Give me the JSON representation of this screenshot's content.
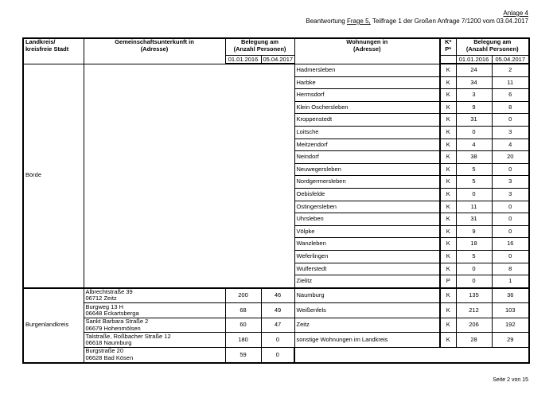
{
  "header": {
    "annex": "Anlage 4",
    "line_prefix": "Beantwortung ",
    "line_link": "Frage 5,",
    "line_suffix": " Teilfrage 1 der Großen Anfrage 7/1200 vom 03.04.2017"
  },
  "table": {
    "headers": {
      "landkreis": "Landkreis/",
      "landkreis2": "kreisfreie Stadt",
      "gu": "Gemeinschaftsunterkunft in",
      "gu2": "(Adresse)",
      "bel": "Belegung am",
      "bel2": "(Anzahl Personen)",
      "d1": "01.01.2016",
      "d2": "05.04.2017",
      "wo": "Wohnungen in",
      "wo2": "(Adresse)",
      "kp": "K*",
      "kp2": "P*",
      "wbel": "Belegung am",
      "wbel2": "(Anzahl Personen)",
      "wd1": "01.01.2016",
      "wd2": "05.04.2017"
    },
    "boerde": {
      "name": "Börde",
      "rows": [
        [
          "Hadmersleben",
          "K",
          "24",
          "2"
        ],
        [
          "Harbke",
          "K",
          "34",
          "11"
        ],
        [
          "Hermsdorf",
          "K",
          "3",
          "6"
        ],
        [
          "Klein Oschersleben",
          "K",
          "9",
          "8"
        ],
        [
          "Kroppenstedt",
          "K",
          "31",
          "0"
        ],
        [
          "Loitsche",
          "K",
          "0",
          "3"
        ],
        [
          "Meitzendorf",
          "K",
          "4",
          "4"
        ],
        [
          "Neindorf",
          "K",
          "38",
          "20"
        ],
        [
          "Neuwegersleben",
          "K",
          "5",
          "0"
        ],
        [
          "Nordgermersleben",
          "K",
          "5",
          "3"
        ],
        [
          "Oebisfelde",
          "K",
          "0",
          "3"
        ],
        [
          "Ostingersleben",
          "K",
          "11",
          "0"
        ],
        [
          "Uhrsleben",
          "K",
          "31",
          "0"
        ],
        [
          "Völpke",
          "K",
          "9",
          "0"
        ],
        [
          "Wanzleben",
          "K",
          "18",
          "16"
        ],
        [
          "Weferlingen",
          "K",
          "5",
          "0"
        ],
        [
          "Wulferstedt",
          "K",
          "0",
          "8"
        ],
        [
          "Zielitz",
          "P",
          "0",
          "1"
        ]
      ]
    },
    "burgenland": {
      "name": "Burgenlandkreis",
      "rows": [
        {
          "a1": "Albrechtstraße 39",
          "a2": "06712 Zeitz",
          "b1": "200",
          "b2": "46",
          "w": "Naumburg",
          "kp": "K",
          "w1": "135",
          "w2": "36"
        },
        {
          "a1": "Burgweg 13 H",
          "a2": "06648 Eckartsberga",
          "b1": "68",
          "b2": "49",
          "w": "Weißenfels",
          "kp": "K",
          "w1": "212",
          "w2": "103"
        },
        {
          "a1": "Sankt Barbara Straße 2",
          "a2": "06679 Hohenmölsen",
          "b1": "60",
          "b2": "47",
          "w": "Zeitz",
          "kp": "K",
          "w1": "206",
          "w2": "192"
        },
        {
          "a1": "Talstraße, Roßbacher Straße 12",
          "a2": "06618 Naumburg",
          "b1": "180",
          "b2": "0",
          "w": "sonstige Wohnungen im Landkreis",
          "kp": "K",
          "w1": "28",
          "w2": "29"
        },
        {
          "a1": "Burgstraße 20",
          "a2": "06628 Bad Kösen",
          "b1": "59",
          "b2": "0"
        }
      ]
    }
  },
  "footer": {
    "page": "Seite 2 von 15"
  }
}
